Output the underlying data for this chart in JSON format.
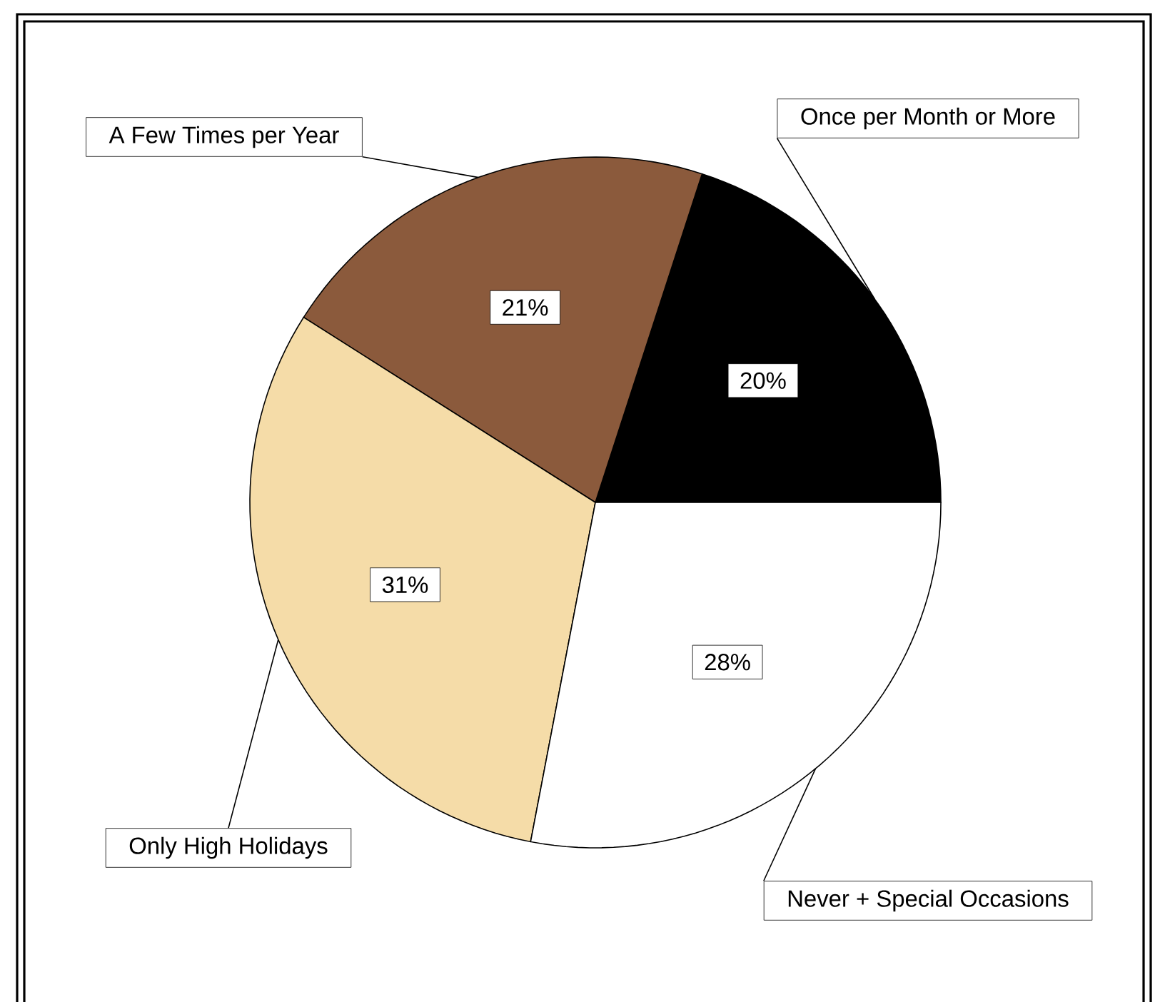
{
  "chart_data": {
    "type": "pie",
    "categories": [
      "Once per Month or More",
      "A Few Times per Year",
      "Only High Holidays",
      "Never + Special Occasions"
    ],
    "values": [
      20,
      21,
      31,
      28
    ],
    "colors": [
      "#000000",
      "#8b5a3c",
      "#f5dca8",
      "#ffffff"
    ],
    "value_labels": [
      "20%",
      "21%",
      "31%",
      "28%"
    ]
  }
}
